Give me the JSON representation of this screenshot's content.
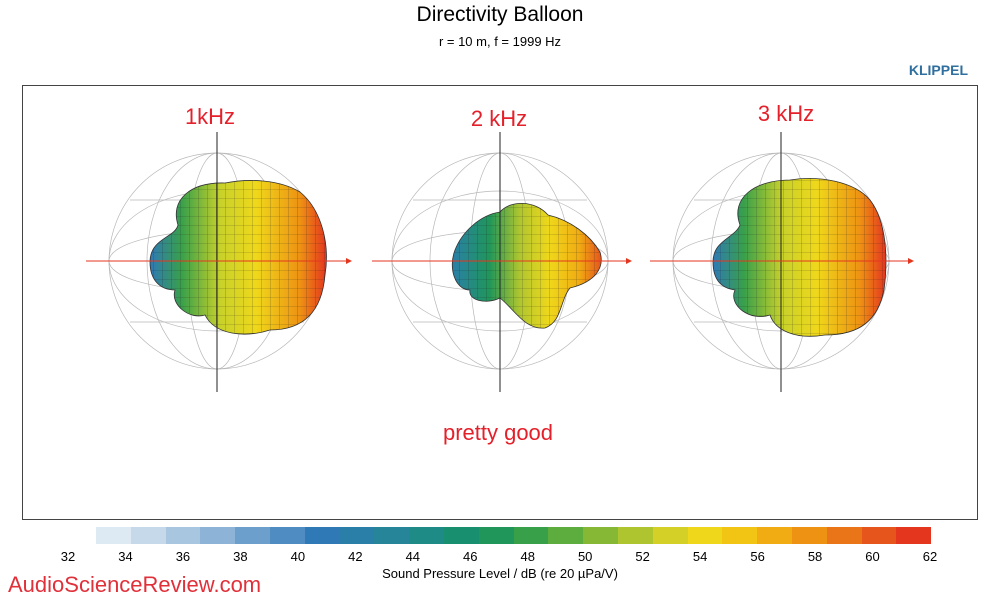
{
  "title": "Directivity Balloon",
  "subtitle": "r = 10 m, f =  1999 Hz",
  "brand": "KLIPPEL",
  "balloons": [
    {
      "label": "1kHz"
    },
    {
      "label": "2 kHz"
    },
    {
      "label": "3 kHz"
    }
  ],
  "annotation": "pretty good",
  "colorbar": {
    "min": 32,
    "max": 62,
    "ticks": [
      "32",
      "34",
      "36",
      "38",
      "40",
      "42",
      "44",
      "46",
      "48",
      "50",
      "52",
      "54",
      "56",
      "58",
      "60",
      "62"
    ],
    "colors": [
      "#dde9f3",
      "#c6d9ea",
      "#a9c6e0",
      "#8db3d6",
      "#6d9fcc",
      "#4f8cc2",
      "#2f79b6",
      "#2a7fa8",
      "#268599",
      "#1f8b86",
      "#18906f",
      "#20965a",
      "#39a04a",
      "#5dac3e",
      "#86b836",
      "#aec52f",
      "#d4d027",
      "#efd81b",
      "#f2c414",
      "#f0ac12",
      "#ee9213",
      "#ea7418",
      "#e6551c",
      "#e4361f"
    ],
    "label": "Sound Pressure Level / dB (re 20 µPa/V)"
  },
  "watermark": "AudioScienceReview.com"
}
